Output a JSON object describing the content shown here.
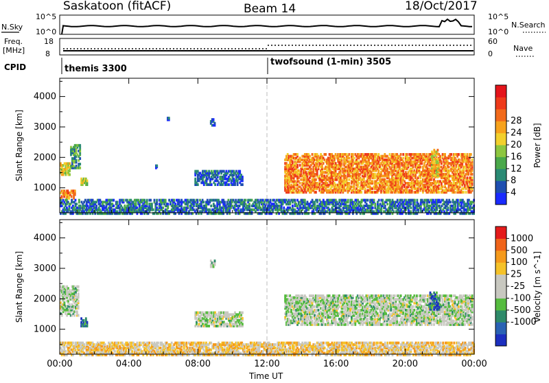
{
  "header": {
    "left": "Saskatoon (fitACF)",
    "center": "Beam 14",
    "right": "18/Oct/2017"
  },
  "nsky": {
    "label": "N.Sky",
    "y_ticks_left": [
      "10^5",
      "10^0"
    ],
    "y_ticks_right": [
      "10^5",
      "10^0"
    ],
    "right_label": "N.Search"
  },
  "freq": {
    "label_line1": "Freq.",
    "label_line2": "[MHz]",
    "y_ticks_left": [
      "18",
      "8"
    ],
    "y_ticks_right": [
      "60",
      "0"
    ],
    "right_label": "Nave"
  },
  "cpid": {
    "label": "CPID",
    "segments": [
      {
        "name": "themis 3300",
        "start": 0
      },
      {
        "name": "twofsound (1-min) 3505",
        "start": 12
      }
    ]
  },
  "chart_data": [
    {
      "type": "heatmap",
      "panel": "power",
      "ylabel": "Slant Range [km]",
      "ylim": [
        180,
        4600
      ],
      "yticks": [
        1000,
        2000,
        3000,
        4000
      ],
      "xlim": [
        0,
        24
      ],
      "colorbar": {
        "label": "Power [dB]",
        "ticks": [
          "4",
          "8",
          "12",
          "16",
          "20",
          "24",
          "28"
        ],
        "colors": [
          "#1a2bff",
          "#1f4fb0",
          "#2a8a74",
          "#4aa84a",
          "#8dc63f",
          "#f2d02c",
          "#f7a21c",
          "#f26a1b",
          "#ee3a1a",
          "#e4141b"
        ]
      },
      "features": [
        {
          "t0": 0.0,
          "t1": 0.6,
          "r0": 1480,
          "r1": 1900,
          "level": 0.55
        },
        {
          "t0": 0.6,
          "t1": 1.2,
          "r0": 1700,
          "r1": 2500,
          "level": 0.3
        },
        {
          "t0": 1.2,
          "t1": 1.6,
          "r0": 1150,
          "r1": 1400,
          "level": 0.45
        },
        {
          "t0": 0.0,
          "t1": 0.9,
          "r0": 700,
          "r1": 1000,
          "level": 0.7
        },
        {
          "t0": 5.5,
          "t1": 5.6,
          "r0": 1700,
          "r1": 1800,
          "level": 0.1
        },
        {
          "t0": 6.2,
          "t1": 6.3,
          "r0": 3280,
          "r1": 3360,
          "level": 0.1
        },
        {
          "t0": 7.8,
          "t1": 10.6,
          "r0": 1150,
          "r1": 1650,
          "level": 0.15
        },
        {
          "t0": 8.7,
          "t1": 9.0,
          "r0": 3100,
          "r1": 3350,
          "level": 0.1
        },
        {
          "t0": 13.0,
          "t1": 23.9,
          "r0": 900,
          "r1": 2200,
          "level": 0.7
        },
        {
          "t0": 21.5,
          "t1": 21.9,
          "r0": 1400,
          "r1": 2400,
          "level": 0.55
        },
        {
          "t0": 0.0,
          "t1": 24.0,
          "r0": 200,
          "r1": 700,
          "level": 0.2
        }
      ]
    },
    {
      "type": "heatmap",
      "panel": "velocity",
      "ylabel": "Slant Range [km]",
      "ylim": [
        180,
        4600
      ],
      "yticks": [
        1000,
        2000,
        3000,
        4000
      ],
      "xlim": [
        0,
        24
      ],
      "xticks": [
        "00:00",
        "04:00",
        "08:00",
        "12:00",
        "16:00",
        "20:00",
        "00:00"
      ],
      "xlabel": "Time UT",
      "colorbar": {
        "label": "Velocity [m s^-1]",
        "ticks": [
          "1000",
          "500",
          "100",
          "25",
          "-25",
          "-100",
          "-500",
          "-1000"
        ],
        "colors": [
          "#1c2fbf",
          "#2a62b4",
          "#2e8a69",
          "#56bc3f",
          "#c8c8c0",
          "#c8c8c0",
          "#f5c229",
          "#f59a1c",
          "#f0641a",
          "#e41b1b"
        ]
      },
      "features": [
        {
          "t0": 0.0,
          "t1": 1.1,
          "r0": 1500,
          "r1": 2500,
          "level": 0.45
        },
        {
          "t0": 1.2,
          "t1": 1.6,
          "r0": 1150,
          "r1": 1450,
          "level": 0.15
        },
        {
          "t0": 7.8,
          "t1": 10.6,
          "r0": 1150,
          "r1": 1650,
          "level": 0.45
        },
        {
          "t0": 8.7,
          "t1": 9.0,
          "r0": 3100,
          "r1": 3350,
          "level": 0.45
        },
        {
          "t0": 13.0,
          "t1": 23.9,
          "r0": 1200,
          "r1": 2200,
          "level": 0.45
        },
        {
          "t0": 21.4,
          "t1": 22.0,
          "r0": 1700,
          "r1": 2300,
          "level": 0.15
        },
        {
          "t0": 0.0,
          "t1": 24.0,
          "r0": 200,
          "r1": 650,
          "level": 0.62
        }
      ]
    }
  ]
}
